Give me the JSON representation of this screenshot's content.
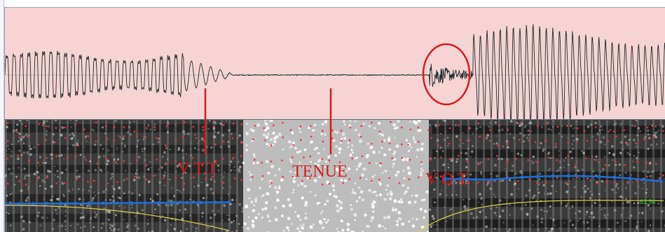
{
  "annotations": {
    "vtt": "V T.T",
    "tenue": "TENUE",
    "vot": "V O T"
  },
  "readout": "63,54",
  "colors": {
    "waveform_bg": "#f6d4d4",
    "waveform_line": "#1c2b2b",
    "annotation": "#d81b1b",
    "formant_blue": "#1e6fd6",
    "pitch_yellow": "#e8d24a",
    "formant_dots": "#ff3030",
    "readout": "#3ccf3c"
  }
}
